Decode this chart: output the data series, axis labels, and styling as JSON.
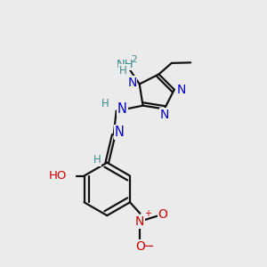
{
  "background_color": "#ebebeb",
  "bond_color": "#111111",
  "blue_color": "#0000cc",
  "teal_color": "#3a8a8a",
  "red_color": "#cc0000",
  "figsize": [
    3.0,
    3.0
  ],
  "dpi": 100,
  "xlim": [
    0,
    10
  ],
  "ylim": [
    0,
    10
  ]
}
